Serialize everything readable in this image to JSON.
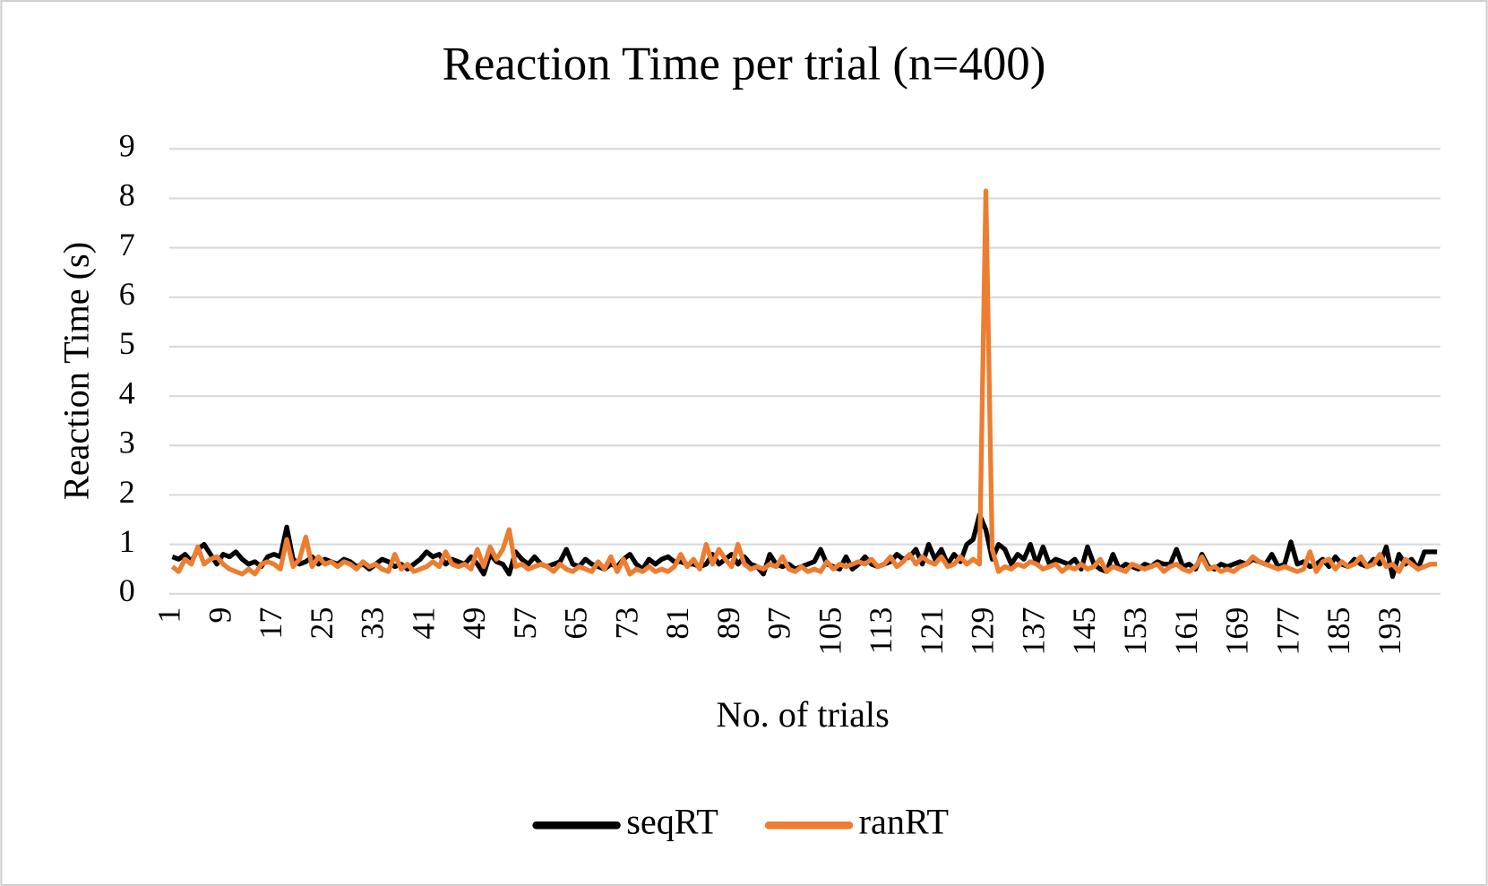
{
  "chart_data": {
    "type": "line",
    "title": "Reaction Time per trial (n=400)",
    "x_label": "No. of trials",
    "y_label": "Reaction Time (s)",
    "categories": [
      1,
      null,
      null,
      null,
      null,
      null,
      null,
      null,
      9,
      null,
      null,
      null,
      null,
      null,
      null,
      null,
      17,
      null,
      null,
      null,
      null,
      null,
      null,
      null,
      25,
      null,
      null,
      null,
      null,
      null,
      null,
      null,
      33,
      null,
      null,
      null,
      null,
      null,
      null,
      null,
      41,
      null,
      null,
      null,
      null,
      null,
      null,
      null,
      49,
      null,
      null,
      null,
      null,
      null,
      null,
      null,
      57,
      null,
      null,
      null,
      null,
      null,
      null,
      null,
      65,
      null,
      null,
      null,
      null,
      null,
      null,
      null,
      73,
      null,
      null,
      null,
      null,
      null,
      null,
      null,
      81,
      null,
      null,
      null,
      null,
      null,
      null,
      null,
      89,
      null,
      null,
      null,
      null,
      null,
      null,
      null,
      97,
      null,
      null,
      null,
      null,
      null,
      null,
      null,
      105,
      null,
      null,
      null,
      null,
      null,
      null,
      null,
      113,
      null,
      null,
      null,
      null,
      null,
      null,
      null,
      121,
      null,
      null,
      null,
      null,
      null,
      null,
      null,
      129,
      null,
      null,
      null,
      null,
      null,
      null,
      null,
      137,
      null,
      null,
      null,
      null,
      null,
      null,
      null,
      145,
      null,
      null,
      null,
      null,
      null,
      null,
      null,
      153,
      null,
      null,
      null,
      null,
      null,
      null,
      null,
      161,
      null,
      null,
      null,
      null,
      null,
      null,
      null,
      169,
      null,
      null,
      null,
      null,
      null,
      null,
      null,
      177,
      null,
      null,
      null,
      null,
      null,
      null,
      null,
      185,
      null,
      null,
      null,
      null,
      null,
      null,
      null,
      193,
      null,
      null,
      null,
      null,
      null,
      null,
      null
    ],
    "series": [
      {
        "name": "seqRT",
        "color": "#000000",
        "values": [
          0.75,
          0.7,
          0.8,
          0.65,
          0.9,
          1.0,
          0.8,
          0.6,
          0.8,
          0.75,
          0.85,
          0.7,
          0.6,
          0.65,
          0.55,
          0.75,
          0.8,
          0.75,
          1.35,
          0.7,
          0.6,
          0.65,
          0.75,
          0.6,
          0.7,
          0.65,
          0.6,
          0.7,
          0.65,
          0.55,
          0.6,
          0.5,
          0.6,
          0.7,
          0.65,
          0.55,
          0.6,
          0.5,
          0.6,
          0.7,
          0.85,
          0.75,
          0.8,
          0.6,
          0.7,
          0.65,
          0.6,
          0.75,
          0.6,
          0.4,
          0.8,
          0.65,
          0.6,
          0.4,
          0.85,
          0.7,
          0.6,
          0.75,
          0.6,
          0.55,
          0.6,
          0.65,
          0.9,
          0.6,
          0.55,
          0.7,
          0.6,
          0.55,
          0.5,
          0.6,
          0.55,
          0.7,
          0.8,
          0.6,
          0.5,
          0.7,
          0.6,
          0.7,
          0.75,
          0.65,
          0.65,
          0.6,
          0.6,
          0.55,
          0.6,
          0.8,
          0.6,
          0.7,
          0.8,
          0.6,
          0.75,
          0.6,
          0.55,
          0.4,
          0.8,
          0.6,
          0.55,
          0.6,
          0.5,
          0.55,
          0.6,
          0.65,
          0.9,
          0.6,
          0.55,
          0.5,
          0.75,
          0.5,
          0.6,
          0.75,
          0.6,
          0.55,
          0.6,
          0.65,
          0.8,
          0.7,
          0.75,
          0.9,
          0.6,
          1.0,
          0.7,
          0.9,
          0.6,
          0.8,
          0.65,
          1.0,
          1.1,
          1.6,
          1.3,
          0.7,
          1.0,
          0.9,
          0.6,
          0.8,
          0.7,
          1.0,
          0.6,
          0.95,
          0.6,
          0.7,
          0.65,
          0.6,
          0.7,
          0.5,
          0.95,
          0.6,
          0.5,
          0.45,
          0.8,
          0.5,
          0.6,
          0.55,
          0.5,
          0.6,
          0.55,
          0.65,
          0.6,
          0.6,
          0.9,
          0.55,
          0.6,
          0.5,
          0.8,
          0.55,
          0.5,
          0.6,
          0.55,
          0.6,
          0.65,
          0.6,
          0.7,
          0.65,
          0.6,
          0.8,
          0.55,
          0.6,
          1.05,
          0.6,
          0.65,
          0.55,
          0.6,
          0.7,
          0.55,
          0.75,
          0.6,
          0.55,
          0.7,
          0.6,
          0.55,
          0.7,
          0.6,
          0.95,
          0.35,
          0.8,
          0.6,
          0.7,
          0.5,
          0.85,
          0.85,
          0.85
        ]
      },
      {
        "name": "ranRT",
        "color": "#ed7d31",
        "values": [
          0.55,
          0.45,
          0.7,
          0.6,
          0.95,
          0.6,
          0.7,
          0.75,
          0.6,
          0.5,
          0.45,
          0.4,
          0.5,
          0.4,
          0.6,
          0.65,
          0.6,
          0.5,
          1.1,
          0.55,
          0.7,
          1.15,
          0.55,
          0.75,
          0.6,
          0.65,
          0.55,
          0.65,
          0.6,
          0.5,
          0.65,
          0.55,
          0.6,
          0.5,
          0.45,
          0.8,
          0.5,
          0.6,
          0.45,
          0.5,
          0.55,
          0.65,
          0.55,
          0.85,
          0.6,
          0.55,
          0.6,
          0.5,
          0.9,
          0.55,
          0.95,
          0.7,
          0.9,
          1.3,
          0.55,
          0.6,
          0.5,
          0.55,
          0.6,
          0.55,
          0.45,
          0.6,
          0.5,
          0.45,
          0.55,
          0.5,
          0.45,
          0.65,
          0.5,
          0.75,
          0.45,
          0.7,
          0.4,
          0.5,
          0.45,
          0.55,
          0.45,
          0.5,
          0.45,
          0.55,
          0.8,
          0.55,
          0.7,
          0.5,
          1.0,
          0.6,
          0.9,
          0.7,
          0.55,
          1.0,
          0.6,
          0.5,
          0.55,
          0.5,
          0.6,
          0.55,
          0.75,
          0.5,
          0.45,
          0.55,
          0.45,
          0.5,
          0.45,
          0.65,
          0.5,
          0.6,
          0.55,
          0.6,
          0.65,
          0.6,
          0.7,
          0.55,
          0.6,
          0.75,
          0.55,
          0.65,
          0.8,
          0.6,
          0.75,
          0.65,
          0.6,
          0.75,
          0.55,
          0.6,
          0.75,
          0.6,
          0.7,
          0.6,
          8.15,
          0.9,
          0.45,
          0.55,
          0.5,
          0.6,
          0.55,
          0.65,
          0.6,
          0.5,
          0.55,
          0.6,
          0.45,
          0.55,
          0.5,
          0.6,
          0.5,
          0.55,
          0.7,
          0.45,
          0.55,
          0.5,
          0.45,
          0.6,
          0.55,
          0.5,
          0.55,
          0.6,
          0.45,
          0.55,
          0.6,
          0.5,
          0.45,
          0.55,
          0.75,
          0.5,
          0.55,
          0.45,
          0.5,
          0.45,
          0.55,
          0.6,
          0.75,
          0.65,
          0.6,
          0.55,
          0.5,
          0.55,
          0.5,
          0.45,
          0.5,
          0.85,
          0.45,
          0.65,
          0.7,
          0.5,
          0.65,
          0.55,
          0.6,
          0.75,
          0.55,
          0.6,
          0.8,
          0.55,
          0.6,
          0.45,
          0.7,
          0.6,
          0.5,
          0.55,
          0.6,
          0.6
        ]
      }
    ],
    "ylim": [
      0,
      9
    ],
    "yticks": [
      0,
      1,
      2,
      3,
      4,
      5,
      6,
      7,
      8,
      9
    ],
    "grid": true,
    "legend": "bottom"
  }
}
